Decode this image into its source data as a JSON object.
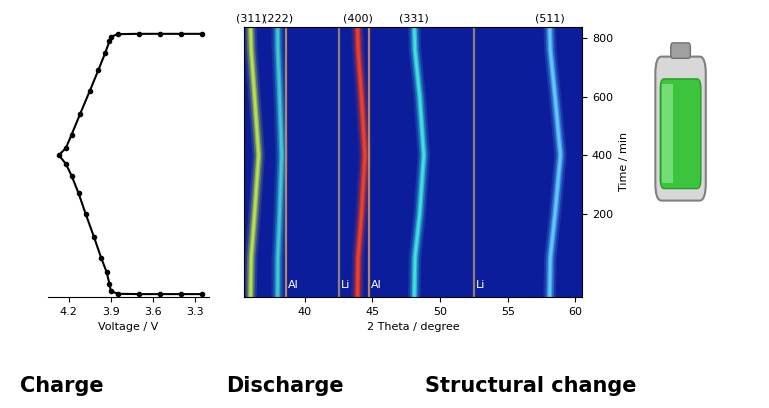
{
  "chart_data": [
    {
      "type": "line",
      "x_label": "Voltage / V",
      "x": [
        3.25,
        3.4,
        3.55,
        3.7,
        3.85,
        3.9,
        3.91,
        3.93,
        3.97,
        4.02,
        4.08,
        4.13,
        4.18,
        4.22,
        4.27,
        4.22,
        4.18,
        4.12,
        4.05,
        3.99,
        3.94,
        3.91,
        3.9,
        3.85,
        3.7,
        3.55,
        3.4,
        3.25
      ],
      "y": [
        -75,
        -75,
        -75,
        -75,
        -74,
        -65,
        -40,
        0,
        50,
        120,
        200,
        270,
        330,
        370,
        400,
        425,
        470,
        540,
        620,
        690,
        750,
        790,
        805,
        814,
        815,
        815,
        815,
        815
      ],
      "color": "#000000",
      "marker": "o",
      "line_style": "solid",
      "xlim": [
        4.35,
        3.2
      ],
      "xticks": [
        4.2,
        3.9,
        3.6,
        3.3
      ],
      "ylim": [
        -85,
        840
      ],
      "tick_labels": "x"
    },
    {
      "type": "line",
      "x_label": "2 Theta / degree",
      "y_label": "Time / min",
      "y": [
        -85,
        50,
        200,
        400,
        600,
        760,
        840
      ],
      "series": [
        {
          "name": "(311)",
          "color": "#b8e04a",
          "values": [
            36.0,
            36.05,
            36.3,
            36.6,
            36.3,
            36.05,
            36.0
          ]
        },
        {
          "name": "(222)",
          "color": "#40c8d8",
          "values": [
            38.0,
            38.02,
            38.15,
            38.3,
            38.15,
            38.02,
            38.0
          ]
        },
        {
          "name": "Al",
          "color": "#c89060",
          "values": [
            38.6,
            38.6,
            38.6,
            38.6,
            38.6,
            38.6,
            38.6
          ]
        },
        {
          "name": "Li",
          "color": "#a08878",
          "values": [
            42.5,
            42.5,
            42.5,
            42.5,
            42.5,
            42.5,
            42.5
          ]
        },
        {
          "name": "(400)",
          "color": "#f04020",
          "values": [
            43.9,
            43.95,
            44.2,
            44.45,
            44.2,
            43.95,
            43.9
          ]
        },
        {
          "name": "Al",
          "color": "#c89060",
          "values": [
            44.75,
            44.75,
            44.75,
            44.75,
            44.75,
            44.75,
            44.75
          ]
        },
        {
          "name": "(331)",
          "color": "#40e0e0",
          "values": [
            48.1,
            48.15,
            48.5,
            48.8,
            48.5,
            48.15,
            48.1
          ]
        },
        {
          "name": "Li",
          "color": "#a08878",
          "values": [
            52.5,
            52.5,
            52.5,
            52.5,
            52.5,
            52.5,
            52.5
          ]
        },
        {
          "name": "(511)",
          "color": "#60c8ff",
          "values": [
            58.1,
            58.15,
            58.5,
            58.9,
            58.5,
            58.15,
            58.1
          ]
        }
      ],
      "xlim": [
        35.5,
        60.5
      ],
      "xticks": [
        40,
        45,
        50,
        55,
        60
      ],
      "ylim": [
        -85,
        840
      ],
      "yticks": [
        200,
        400,
        600,
        800
      ]
    }
  ],
  "captions": [
    "Charge",
    "Discharge",
    "Structural change"
  ]
}
